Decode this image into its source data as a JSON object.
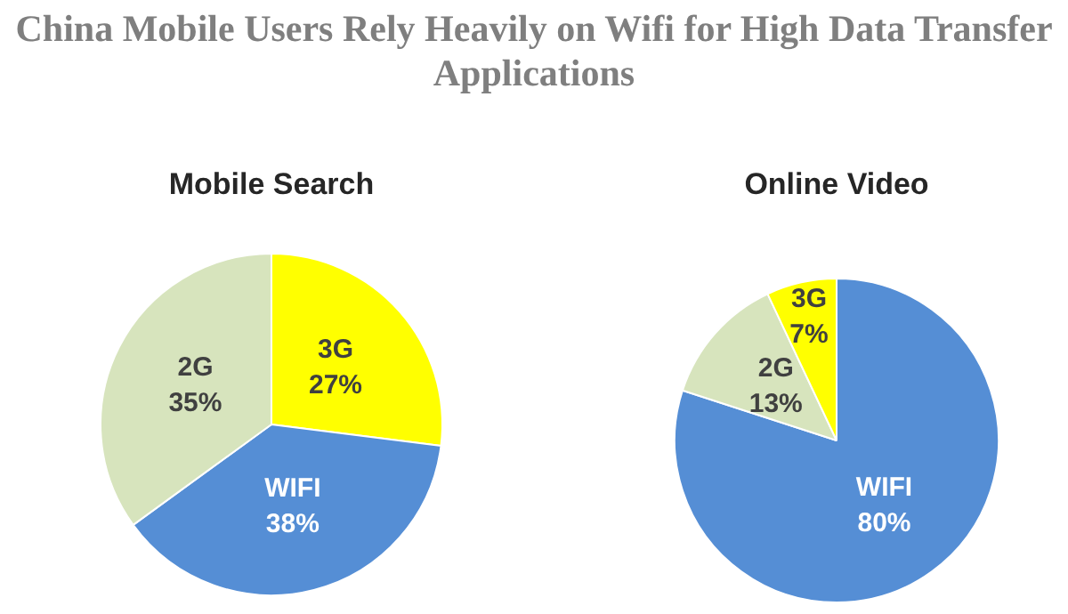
{
  "chart_data": [
    {
      "type": "pie",
      "title": "China Mobile Users Rely Heavily on Wifi for High Data Transfer Applications",
      "subtitle": "Mobile Search",
      "categories": [
        "3G",
        "WIFI",
        "2G"
      ],
      "values": [
        27,
        38,
        35
      ],
      "colors": [
        "#ffff00",
        "#558ed5",
        "#d7e4bd"
      ],
      "value_labels": [
        "27%",
        "38%",
        "35%"
      ],
      "legend": false
    },
    {
      "type": "pie",
      "subtitle": "Online Video",
      "categories": [
        "WIFI",
        "2G",
        "3G"
      ],
      "values": [
        80,
        13,
        7
      ],
      "colors": [
        "#558ed5",
        "#d7e4bd",
        "#ffff00"
      ],
      "value_labels": [
        "80%",
        "13%",
        "7%"
      ],
      "legend": false
    }
  ]
}
